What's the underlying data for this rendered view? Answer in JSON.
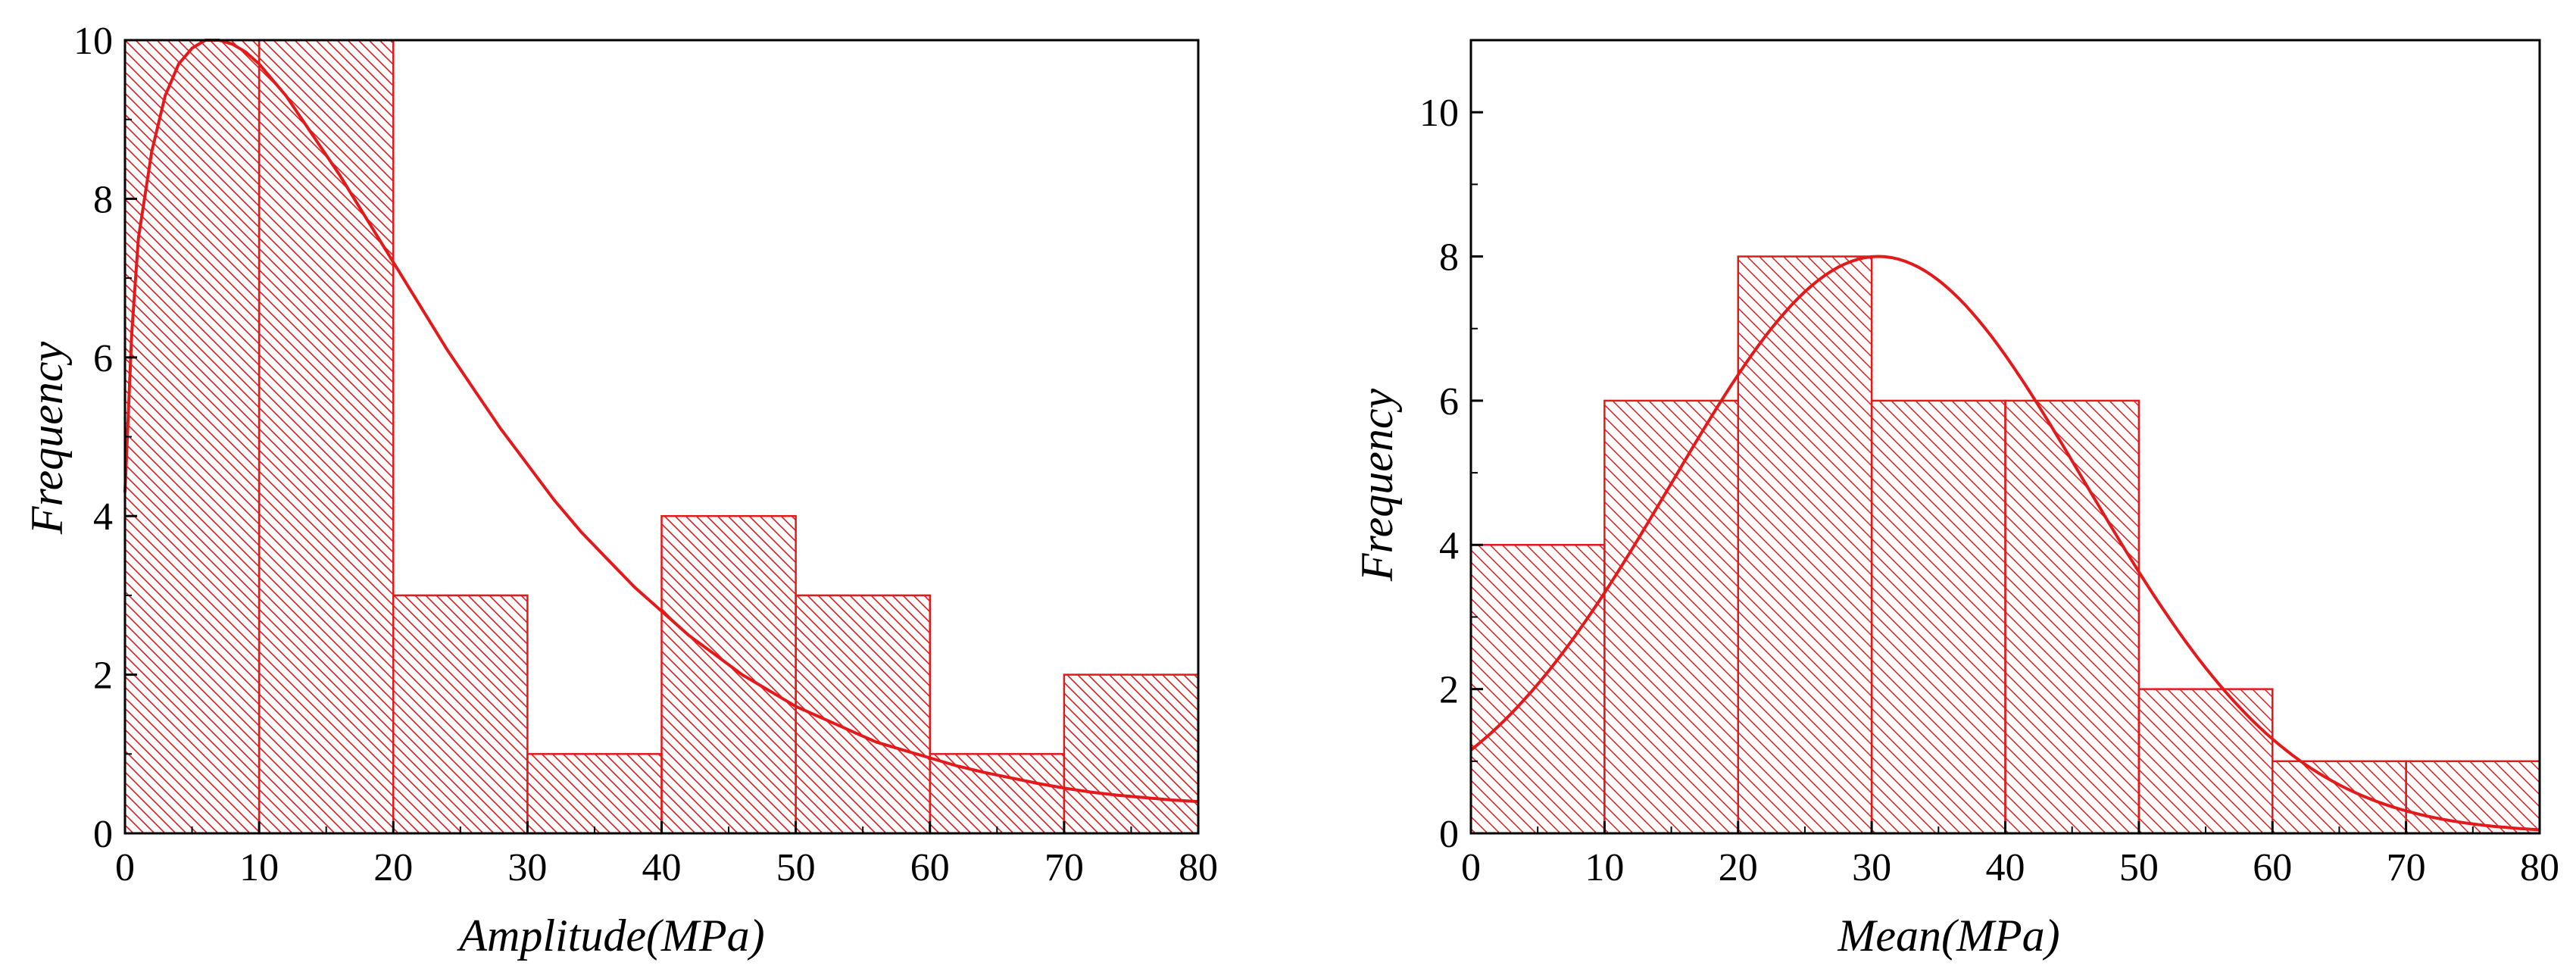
{
  "colors": {
    "accent": "#e31a1c",
    "axis": "#000000",
    "background": "#ffffff"
  },
  "chart_data": [
    {
      "type": "bar",
      "subtype": "histogram-with-fit-curve",
      "title": "",
      "xlabel": "Amplitude(MPa)",
      "ylabel": "Frequency",
      "xlim": [
        0,
        80
      ],
      "ylim": [
        0,
        10
      ],
      "xticks": [
        0,
        10,
        20,
        30,
        40,
        50,
        60,
        70,
        80
      ],
      "yticks": [
        0,
        2,
        4,
        6,
        8,
        10
      ],
      "xtick_labels": [
        "0",
        "10",
        "20",
        "30",
        "40",
        "50",
        "60",
        "70",
        "80"
      ],
      "ytick_labels": [
        "0",
        "2",
        "4",
        "6",
        "8",
        "10"
      ],
      "bin_edges": [
        0,
        10,
        20,
        30,
        40,
        50,
        60,
        70,
        80
      ],
      "values": [
        10,
        10,
        3,
        1,
        4,
        3,
        1,
        2
      ],
      "fit_curve": {
        "x": [
          0,
          0.5,
          1,
          2,
          3,
          4,
          5,
          6,
          7,
          8,
          9,
          10,
          12,
          14,
          16,
          18,
          20,
          22,
          24,
          26,
          28,
          30,
          32,
          34,
          36,
          38,
          40,
          42,
          44,
          46,
          48,
          50,
          52,
          54,
          56,
          58,
          60,
          62,
          64,
          66,
          68,
          70,
          72,
          74,
          76,
          78,
          80
        ],
        "y": [
          4.3,
          6.3,
          7.5,
          8.6,
          9.3,
          9.7,
          9.9,
          10.0,
          10.0,
          9.95,
          9.85,
          9.7,
          9.3,
          8.8,
          8.3,
          7.75,
          7.2,
          6.65,
          6.1,
          5.6,
          5.1,
          4.65,
          4.2,
          3.8,
          3.45,
          3.1,
          2.8,
          2.5,
          2.25,
          2.0,
          1.8,
          1.6,
          1.45,
          1.3,
          1.15,
          1.05,
          0.95,
          0.85,
          0.77,
          0.7,
          0.63,
          0.57,
          0.52,
          0.48,
          0.45,
          0.42,
          0.4
        ]
      },
      "grid": false,
      "legend": "none"
    },
    {
      "type": "bar",
      "subtype": "histogram-with-fit-curve",
      "title": "",
      "xlabel": "Mean(MPa)",
      "ylabel": "Frequency",
      "xlim": [
        0,
        80
      ],
      "ylim": [
        0,
        11
      ],
      "xticks": [
        0,
        10,
        20,
        30,
        40,
        50,
        60,
        70,
        80
      ],
      "yticks": [
        0,
        2,
        4,
        6,
        8,
        10
      ],
      "xtick_labels": [
        "0",
        "10",
        "20",
        "30",
        "40",
        "50",
        "60",
        "70",
        "80"
      ],
      "ytick_labels": [
        "0",
        "2",
        "4",
        "6",
        "8",
        "10"
      ],
      "bin_edges": [
        0,
        10,
        20,
        30,
        40,
        50,
        60,
        70,
        80
      ],
      "values": [
        4,
        6,
        8,
        6,
        6,
        2,
        1,
        1
      ],
      "fit_curve": {
        "model": "normal",
        "mean": 30.5,
        "sd": 15.5,
        "peak": 8
      },
      "grid": false,
      "legend": "none"
    }
  ]
}
